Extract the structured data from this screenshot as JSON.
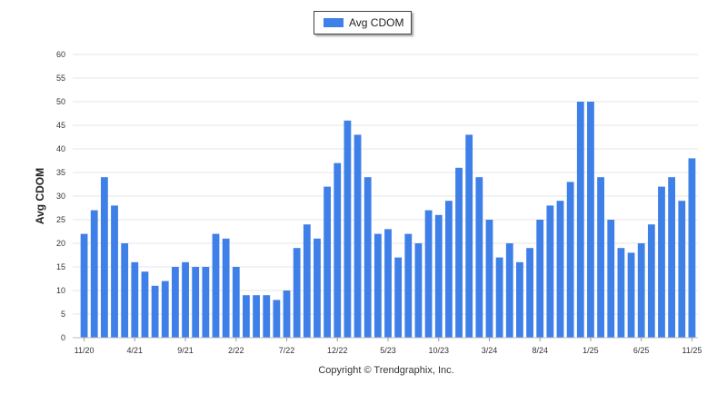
{
  "chart_data": {
    "type": "bar",
    "ylabel": "Avg CDOM",
    "ylim": [
      0,
      60
    ],
    "yticks": [
      0,
      5,
      10,
      15,
      20,
      25,
      30,
      35,
      40,
      45,
      50,
      55,
      60
    ],
    "grid": true,
    "legend_position": "top-center",
    "x_tick_labels": [
      {
        "index": 0,
        "label": "11/20"
      },
      {
        "index": 5,
        "label": "4/21"
      },
      {
        "index": 10,
        "label": "9/21"
      },
      {
        "index": 15,
        "label": "2/22"
      },
      {
        "index": 20,
        "label": "7/22"
      },
      {
        "index": 25,
        "label": "12/22"
      },
      {
        "index": 30,
        "label": "5/23"
      },
      {
        "index": 35,
        "label": "10/23"
      },
      {
        "index": 40,
        "label": "3/24"
      },
      {
        "index": 45,
        "label": "8/24"
      },
      {
        "index": 50,
        "label": "1/25"
      },
      {
        "index": 55,
        "label": "6/25"
      },
      {
        "index": 60,
        "label": "11/25"
      }
    ],
    "series": [
      {
        "name": "Avg CDOM",
        "color": "#3f7fe8",
        "values": [
          22,
          27,
          34,
          28,
          20,
          16,
          14,
          11,
          12,
          15,
          16,
          15,
          15,
          22,
          21,
          15,
          9,
          9,
          9,
          8,
          10,
          19,
          24,
          21,
          32,
          37,
          46,
          43,
          34,
          22,
          23,
          17,
          22,
          20,
          27,
          26,
          29,
          36,
          43,
          34,
          25,
          17,
          20,
          16,
          19,
          25,
          28,
          29,
          33,
          50,
          50,
          34,
          25,
          19,
          18,
          20,
          24,
          32,
          34,
          29,
          38
        ]
      }
    ]
  },
  "copyright": "Copyright © Trendgraphix, Inc."
}
